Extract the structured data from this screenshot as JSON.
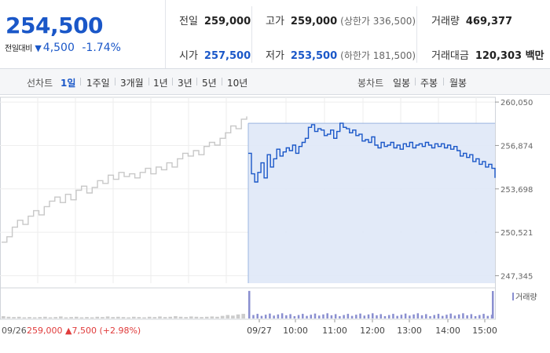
{
  "quote": {
    "price": "254,500",
    "change_label": "전일대비",
    "change_arrow": "▼",
    "change_amount": "4,500",
    "change_pct": "-1.74%",
    "prev_close_label": "전일",
    "prev_close": "259,000",
    "high_label": "고가",
    "high": "259,000",
    "upper_limit": "(상한가 336,500)",
    "volume_label": "거래량",
    "volume": "469,377",
    "open_label": "시가",
    "open": "257,500",
    "low_label": "저가",
    "low": "253,500",
    "lower_limit": "(하한가 181,500)",
    "value_label": "거래대금",
    "value": "120,303 백만"
  },
  "tabs": {
    "line_label": "선차트",
    "line_items": [
      "1일",
      "1주일",
      "3개월",
      "1년",
      "3년",
      "5년",
      "10년"
    ],
    "active": "1일",
    "candle_label": "봉차트",
    "candle_items": [
      "일봉",
      "주봉",
      "월봉"
    ]
  },
  "colors": {
    "blue": "#1a57c8",
    "fill": "#dfe8f7",
    "prev": "#c8c8c8",
    "up": "#e03b3b"
  },
  "chart_data": {
    "type": "line",
    "ylim": [
      246800,
      260400
    ],
    "yticks": [
      260050,
      256874,
      253698,
      250521,
      247345
    ],
    "ytick_labels": [
      "260,050",
      "256,874",
      "253,698",
      "250,521",
      "247,345"
    ],
    "x_labels": [
      "09/26",
      "09/27",
      "10:00",
      "11:00",
      "12:00",
      "13:00",
      "14:00",
      "15:00"
    ],
    "volume_legend": "거래량",
    "prev_day": {
      "date": "09/26",
      "close": "259,000",
      "change_arrow": "▲",
      "change": "7,500",
      "change_pct": "(+2.98%)"
    },
    "series": [
      {
        "values": [
          249800,
          250200,
          250900,
          251400,
          251100,
          251700,
          252100,
          251800,
          252400,
          252800,
          253100,
          252700,
          253300,
          252900,
          253600,
          253900,
          253400,
          253800,
          254300,
          254100,
          254700,
          254400,
          254900,
          254600,
          254800,
          254500,
          254900,
          255200,
          254800,
          255300,
          255100,
          255600,
          255300,
          255900,
          256300,
          256100,
          256500,
          256200,
          256800,
          257100,
          256900,
          257400,
          257800,
          258300,
          258100,
          258800,
          259000
        ]
      },
      {
        "values": [
          256300,
          254800,
          254200,
          254900,
          255600,
          254500,
          256200,
          255300,
          255900,
          256600,
          256100,
          256400,
          256700,
          256500,
          256900,
          256300,
          256800,
          257100,
          257400,
          258200,
          258400,
          257900,
          258100,
          258000,
          257600,
          257700,
          258000,
          257400,
          257900,
          258500,
          258200,
          258100,
          257800,
          258000,
          257600,
          257700,
          257200,
          257300,
          257100,
          257500,
          256900,
          256700,
          257100,
          256800,
          256900,
          257100,
          256700,
          256900,
          256600,
          257000,
          256800,
          257100,
          256700,
          256900,
          257000,
          256800,
          257100,
          256900,
          256700,
          257000,
          256800,
          257000,
          256700,
          256900,
          256600,
          256800,
          256500,
          256100,
          256300,
          256000,
          256200,
          255700,
          255900,
          255500,
          255700,
          255300,
          255500,
          255200,
          254500
        ]
      }
    ],
    "volume": [
      0.08,
      0.06,
      0.05,
      0.06,
      0.04,
      0.05,
      0.04,
      0.05,
      0.06,
      0.04,
      0.05,
      0.07,
      0.04,
      0.05,
      0.06,
      0.04,
      0.05,
      0.04,
      0.06,
      0.05,
      0.07,
      0.05,
      0.06,
      0.05,
      0.04,
      0.06,
      0.05,
      0.04,
      0.06,
      0.05,
      0.07,
      0.05,
      0.06,
      0.08,
      0.06,
      0.05,
      0.07,
      0.06,
      0.05,
      0.06,
      0.07,
      0.06,
      0.09,
      0.12,
      0.1,
      0.14,
      0.16
    ]
  }
}
